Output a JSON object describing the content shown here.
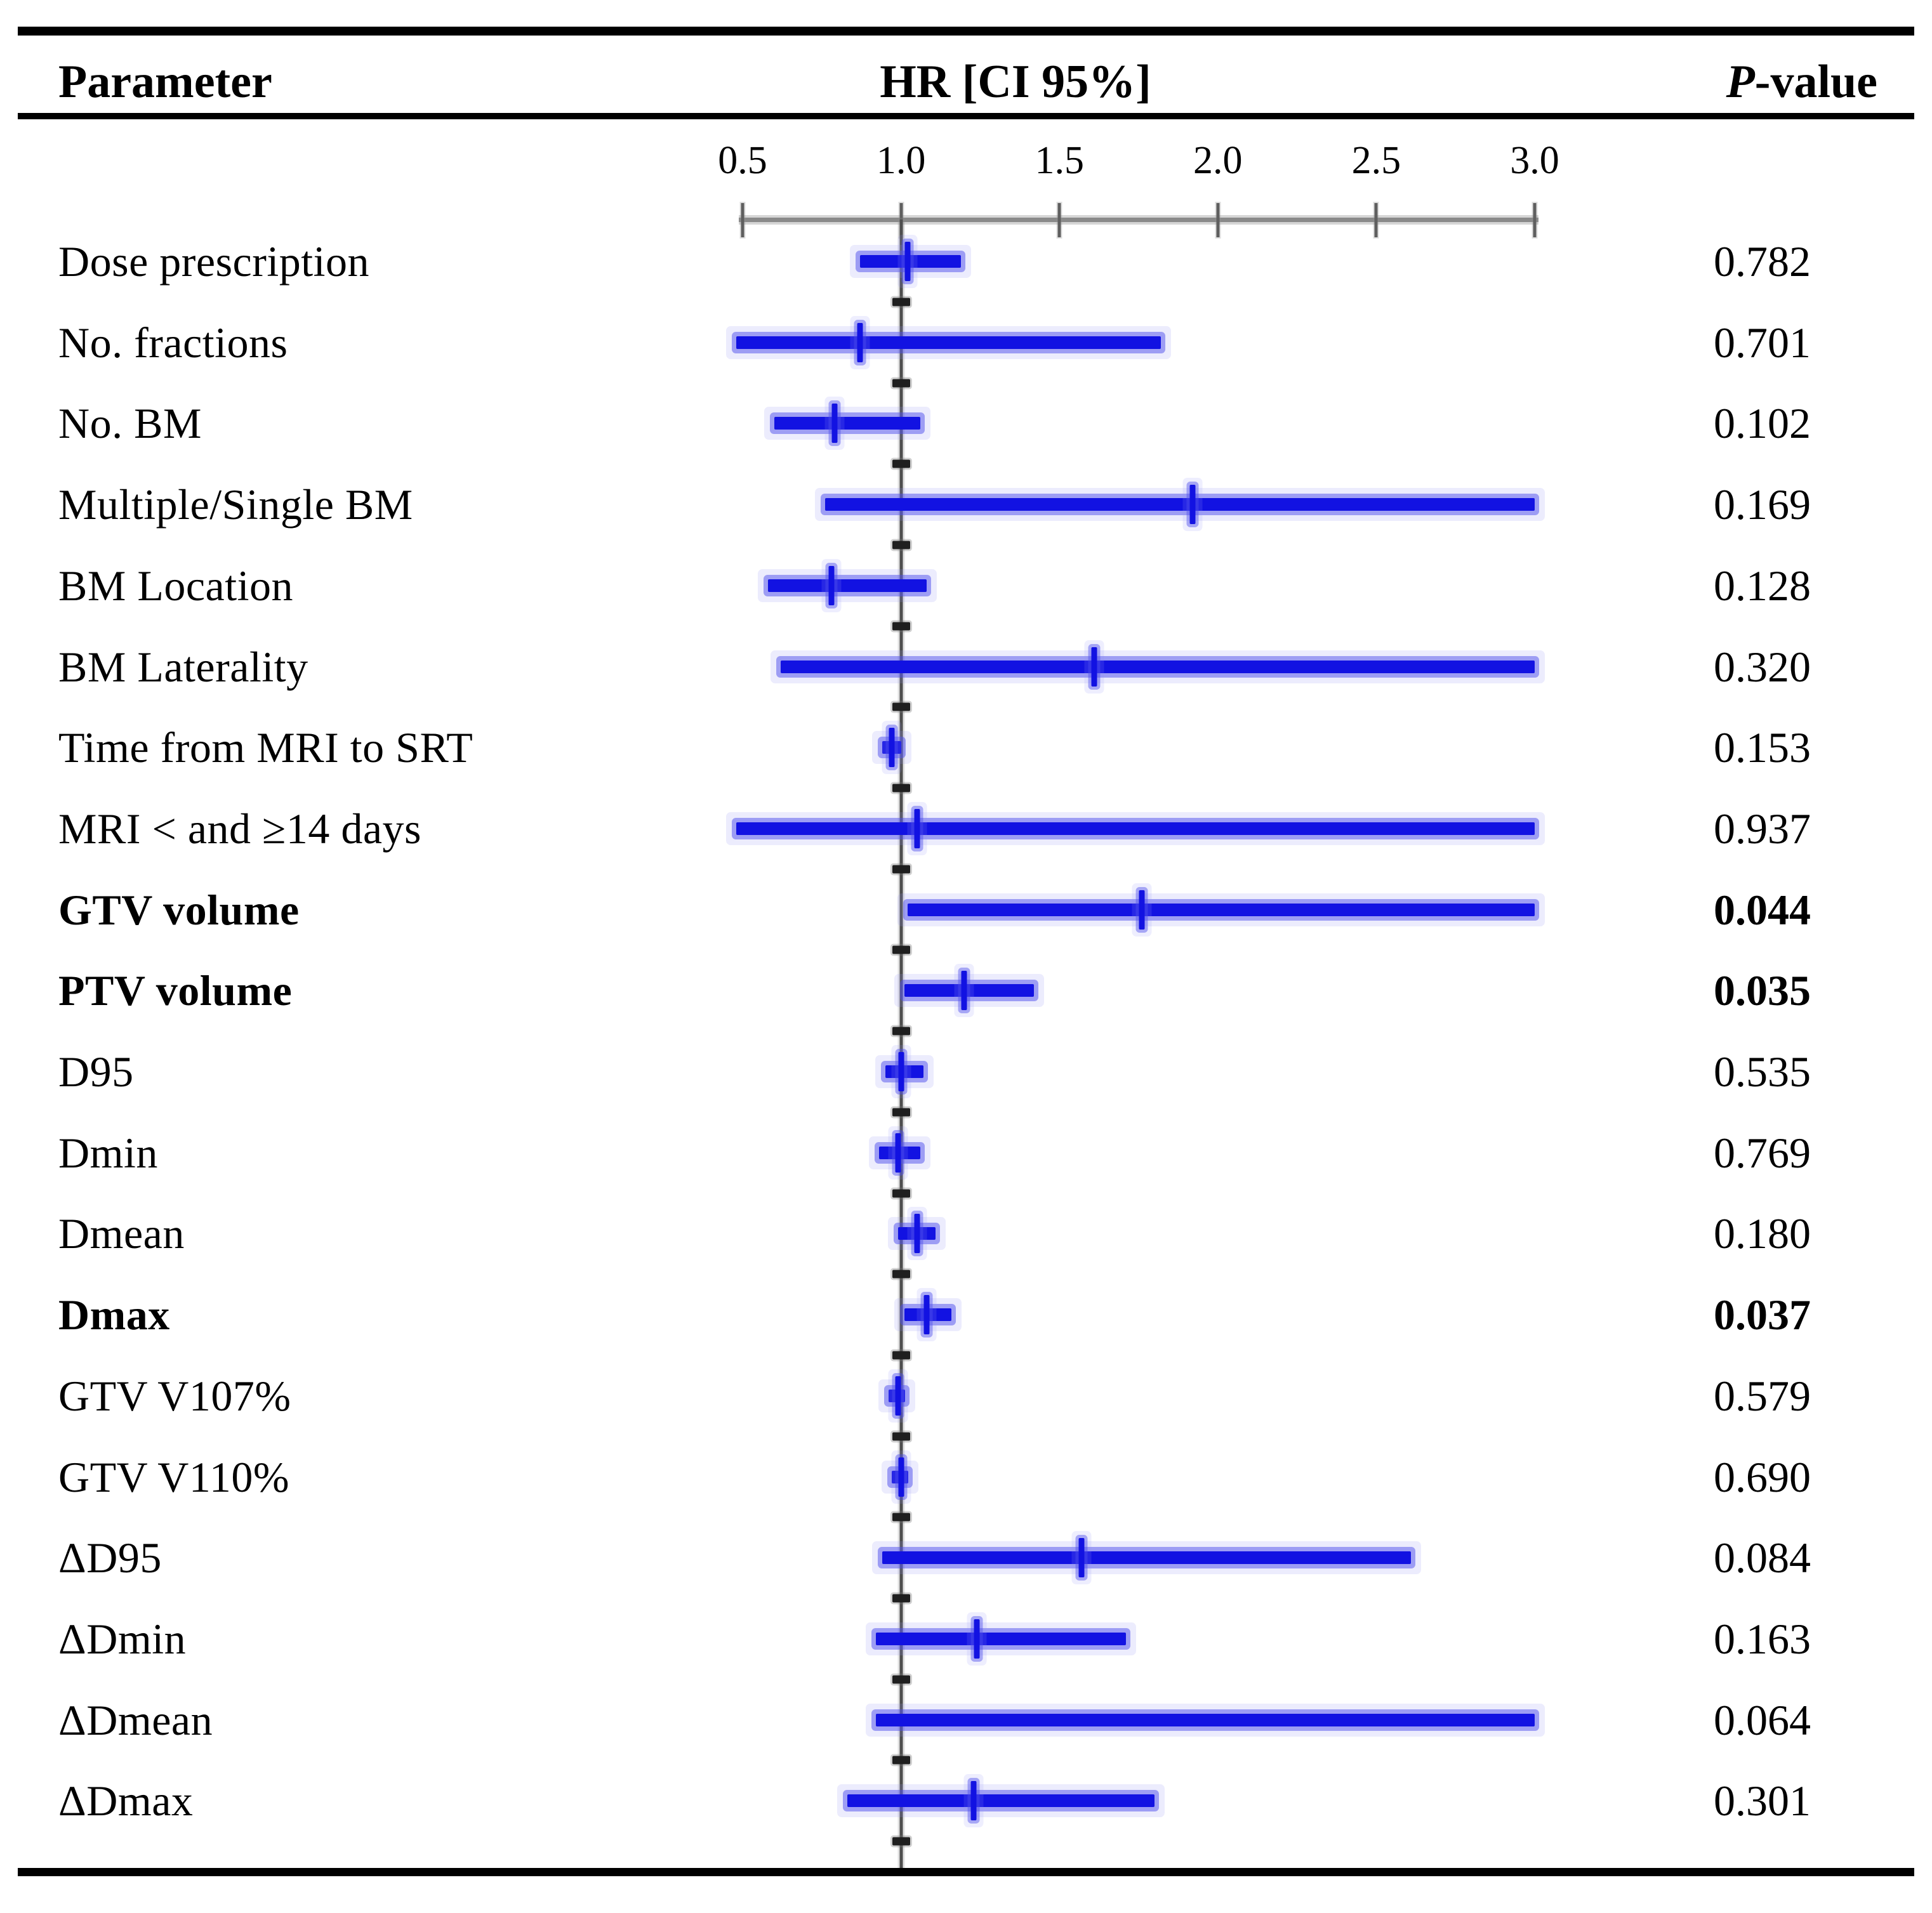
{
  "header": {
    "parameter": "Parameter",
    "hr_ci": "HR [CI 95%]",
    "pvalue_italic": "P",
    "pvalue_rest": "-value"
  },
  "axis": {
    "tick_labels": [
      "0.5",
      "1.0",
      "1.5",
      "2.0",
      "2.5",
      "3.0"
    ],
    "tick_values": [
      0.5,
      1.0,
      1.5,
      2.0,
      2.5,
      3.0
    ],
    "min": 0.5,
    "max": 3.0,
    "reference_line": 1.0
  },
  "colors": {
    "bar_blue": "#1212e2",
    "bar_halo": "#9898f6",
    "axis_gray": "#8a8a8a",
    "reference_line_gray": "#4e4e4e",
    "text_black": "#000000"
  },
  "rows": [
    {
      "label": "Dose prescription",
      "bold": false,
      "ci_low": 0.87,
      "ci_high": 1.19,
      "hr": 1.02,
      "p": "0.782"
    },
    {
      "label": "No. fractions",
      "bold": false,
      "ci_low": 0.48,
      "ci_high": 1.82,
      "hr": 0.87,
      "p": "0.701"
    },
    {
      "label": "No. BM",
      "bold": false,
      "ci_low": 0.6,
      "ci_high": 1.06,
      "hr": 0.79,
      "p": "0.102"
    },
    {
      "label": "Multiple/Single BM",
      "bold": false,
      "ci_low": 0.76,
      "ci_high": 3.0,
      "hr": 1.92,
      "p": "0.169"
    },
    {
      "label": "BM Location",
      "bold": false,
      "ci_low": 0.58,
      "ci_high": 1.08,
      "hr": 0.78,
      "p": "0.128"
    },
    {
      "label": "BM Laterality",
      "bold": false,
      "ci_low": 0.62,
      "ci_high": 3.0,
      "hr": 1.61,
      "p": "0.320"
    },
    {
      "label": "Time from MRI to SRT",
      "bold": false,
      "ci_low": 0.94,
      "ci_high": 1.0,
      "hr": 0.97,
      "p": "0.153"
    },
    {
      "label": "MRI < and ≥14 days",
      "bold": false,
      "ci_low": 0.48,
      "ci_high": 3.0,
      "hr": 1.05,
      "p": "0.937"
    },
    {
      "label": "GTV volume",
      "bold": true,
      "ci_low": 1.02,
      "ci_high": 3.0,
      "hr": 1.76,
      "p": "0.044"
    },
    {
      "label": "PTV volume",
      "bold": true,
      "ci_low": 1.01,
      "ci_high": 1.42,
      "hr": 1.2,
      "p": "0.035"
    },
    {
      "label": "D95",
      "bold": false,
      "ci_low": 0.95,
      "ci_high": 1.07,
      "hr": 1.0,
      "p": "0.535"
    },
    {
      "label": "Dmin",
      "bold": false,
      "ci_low": 0.93,
      "ci_high": 1.06,
      "hr": 0.99,
      "p": "0.769"
    },
    {
      "label": "Dmean",
      "bold": false,
      "ci_low": 0.99,
      "ci_high": 1.11,
      "hr": 1.05,
      "p": "0.180"
    },
    {
      "label": "Dmax",
      "bold": true,
      "ci_low": 1.01,
      "ci_high": 1.16,
      "hr": 1.08,
      "p": "0.037"
    },
    {
      "label": "GTV V107%",
      "bold": false,
      "ci_low": 0.96,
      "ci_high": 1.01,
      "hr": 0.99,
      "p": "0.579"
    },
    {
      "label": "GTV V110%",
      "bold": false,
      "ci_low": 0.97,
      "ci_high": 1.02,
      "hr": 1.0,
      "p": "0.690"
    },
    {
      "label": "ΔD95",
      "bold": false,
      "ci_low": 0.94,
      "ci_high": 2.61,
      "hr": 1.57,
      "p": "0.084"
    },
    {
      "label": "ΔDmin",
      "bold": false,
      "ci_low": 0.92,
      "ci_high": 1.71,
      "hr": 1.24,
      "p": "0.163"
    },
    {
      "label": "ΔDmean",
      "bold": false,
      "ci_low": 0.92,
      "ci_high": 3.0,
      "hr": null,
      "p": "0.064"
    },
    {
      "label": "ΔDmax",
      "bold": false,
      "ci_low": 0.83,
      "ci_high": 1.8,
      "hr": 1.23,
      "p": "0.301"
    }
  ],
  "chart_data": {
    "type": "scatter",
    "variant": "forest-plot",
    "title": "HR [CI 95%]",
    "xlabel": "HR",
    "xlim": [
      0.5,
      3.0
    ],
    "x_ticks": [
      0.5,
      1.0,
      1.5,
      2.0,
      2.5,
      3.0
    ],
    "reference_line": 1.0,
    "grid": false,
    "legend": "none",
    "categories": [
      "Dose prescription",
      "No. fractions",
      "No. BM",
      "Multiple/Single BM",
      "BM Location",
      "BM Laterality",
      "Time from MRI to SRT",
      "MRI < and ≥14 days",
      "GTV volume",
      "PTV volume",
      "D95",
      "Dmin",
      "Dmean",
      "Dmax",
      "GTV V107%",
      "GTV V110%",
      "ΔD95",
      "ΔDmin",
      "ΔDmean",
      "ΔDmax"
    ],
    "series": [
      {
        "name": "HR point estimate",
        "values": [
          1.02,
          0.87,
          0.79,
          1.92,
          0.78,
          1.61,
          0.97,
          1.05,
          1.76,
          1.2,
          1.0,
          0.99,
          1.05,
          1.08,
          0.99,
          1.0,
          1.57,
          1.24,
          null,
          1.23
        ]
      },
      {
        "name": "CI95 lower",
        "values": [
          0.87,
          0.48,
          0.6,
          0.76,
          0.58,
          0.62,
          0.94,
          0.48,
          1.02,
          1.01,
          0.95,
          0.93,
          0.99,
          1.01,
          0.96,
          0.97,
          0.94,
          0.92,
          0.92,
          0.83
        ]
      },
      {
        "name": "CI95 upper",
        "values": [
          1.19,
          1.82,
          1.06,
          3.0,
          1.08,
          3.0,
          1.0,
          3.0,
          3.0,
          1.42,
          1.07,
          1.06,
          1.11,
          1.16,
          1.01,
          1.02,
          2.61,
          1.71,
          3.0,
          1.8
        ]
      },
      {
        "name": "P-value",
        "values": [
          0.782,
          0.701,
          0.102,
          0.169,
          0.128,
          0.32,
          0.153,
          0.937,
          0.044,
          0.035,
          0.535,
          0.769,
          0.18,
          0.037,
          0.579,
          0.69,
          0.084,
          0.163,
          0.064,
          0.301
        ]
      }
    ],
    "bold_significant_rows": [
      "GTV volume",
      "PTV volume",
      "Dmax"
    ]
  }
}
